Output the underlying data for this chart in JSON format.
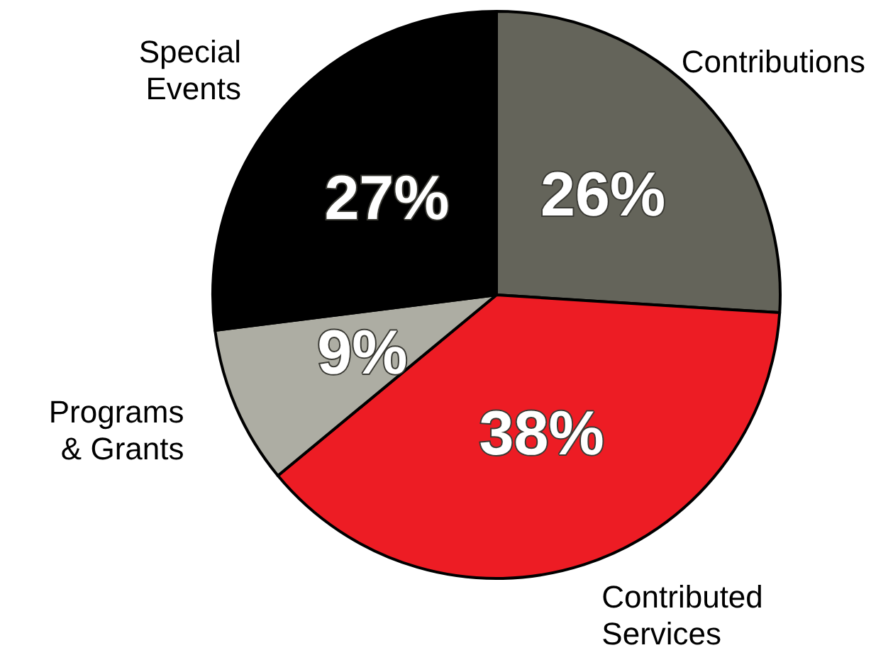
{
  "chart_data": {
    "type": "pie",
    "categories": [
      "Contributions",
      "Contributed Services",
      "Programs & Grants",
      "Special Events"
    ],
    "values": [
      26,
      38,
      9,
      27
    ],
    "colors": [
      "#64645a",
      "#ed1c24",
      "#adada3",
      "#000000"
    ],
    "value_labels": [
      "26%",
      "38%",
      "9%",
      "27%"
    ],
    "legend": false
  }
}
